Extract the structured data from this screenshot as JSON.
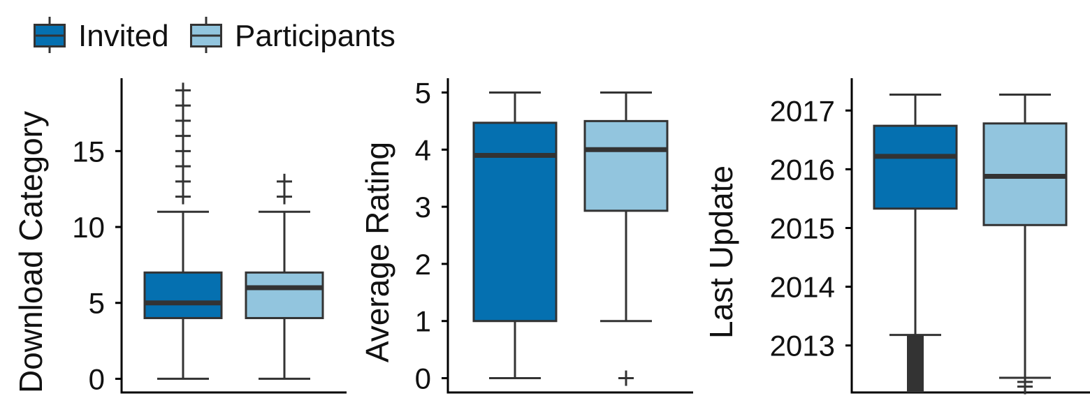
{
  "legend": {
    "position": "top-left",
    "items": [
      {
        "label": "Invited",
        "color": "#0570b0"
      },
      {
        "label": "Participants",
        "color": "#92c5de"
      }
    ]
  },
  "style": {
    "outline_color": "#333333",
    "axis_color": "#000000"
  },
  "chart_data": [
    {
      "type": "boxplot",
      "ylabel": "Download Category",
      "ylim": [
        -0.9,
        19.8
      ],
      "yticks": [
        0,
        5,
        10,
        15
      ],
      "grid": false,
      "series": [
        {
          "name": "Invited",
          "min": 0,
          "q1": 4,
          "median": 5,
          "q3": 7,
          "max": 11,
          "outliers": [
            12,
            13,
            14,
            15,
            16,
            17,
            18,
            19
          ]
        },
        {
          "name": "Participants",
          "min": 0,
          "q1": 4,
          "median": 6,
          "q3": 7,
          "max": 11,
          "outliers": [
            12,
            13
          ]
        }
      ]
    },
    {
      "type": "boxplot",
      "ylabel": "Average Rating",
      "ylim": [
        -0.25,
        5.25
      ],
      "yticks": [
        0,
        1,
        2,
        3,
        4,
        5
      ],
      "grid": false,
      "series": [
        {
          "name": "Invited",
          "min": 0,
          "q1": 1,
          "median": 3.9,
          "q3": 4.47,
          "max": 5,
          "outliers": []
        },
        {
          "name": "Participants",
          "min": 1,
          "q1": 2.93,
          "median": 4,
          "q3": 4.5,
          "max": 5,
          "outliers": [
            0
          ]
        }
      ]
    },
    {
      "type": "boxplot",
      "ylabel": "Last Update",
      "ylim": [
        2012.2,
        2017.55
      ],
      "yticks": [
        2013,
        2014,
        2015,
        2016,
        2017
      ],
      "grid": false,
      "series": [
        {
          "name": "Invited",
          "min": 2013.18,
          "q1": 2015.33,
          "median": 2016.22,
          "q3": 2016.74,
          "max": 2017.27,
          "outliers": [],
          "outlier_band": [
            2012.2,
            2013.18
          ]
        },
        {
          "name": "Participants",
          "min": 2012.45,
          "q1": 2015.05,
          "median": 2015.88,
          "q3": 2016.78,
          "max": 2017.27,
          "outliers": [
            2012.38,
            2012.3
          ]
        }
      ]
    }
  ]
}
